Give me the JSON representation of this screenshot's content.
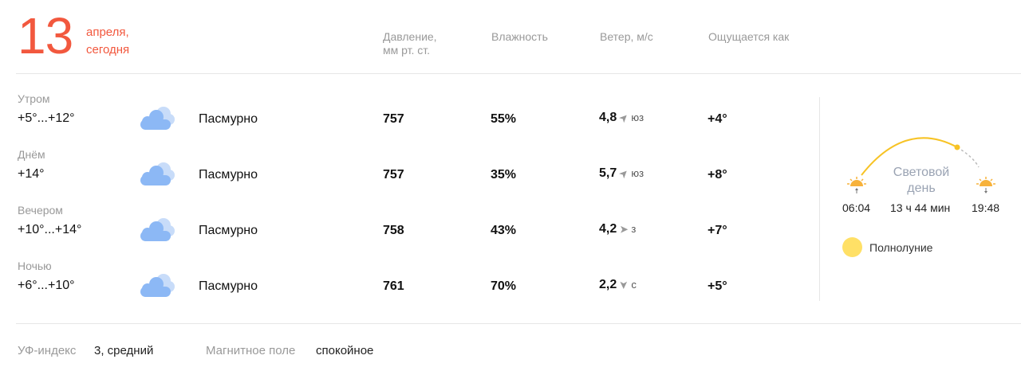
{
  "date": {
    "day": "13",
    "month": "апреля,",
    "relative": "сегодня"
  },
  "headers": {
    "pressure": "Давление,\nмм рт. ст.",
    "humidity": "Влажность",
    "wind": "Ветер, м/с",
    "feels": "Ощущается как"
  },
  "rows": [
    {
      "part": "Утром",
      "temp": "+5°...+12°",
      "icon": "overcast-cloud-icon",
      "condition": "Пасмурно",
      "pressure": "757",
      "humidity": "55%",
      "wind_speed": "4,8",
      "wind_dir": "юз",
      "wind_arrow_deg": -45,
      "feels": "+4°"
    },
    {
      "part": "Днём",
      "temp": "+14°",
      "icon": "overcast-cloud-icon",
      "condition": "Пасмурно",
      "pressure": "757",
      "humidity": "35%",
      "wind_speed": "5,7",
      "wind_dir": "юз",
      "wind_arrow_deg": -45,
      "feels": "+8°"
    },
    {
      "part": "Вечером",
      "temp": "+10°...+14°",
      "icon": "overcast-cloud-icon",
      "condition": "Пасмурно",
      "pressure": "758",
      "humidity": "43%",
      "wind_speed": "4,2",
      "wind_dir": "з",
      "wind_arrow_deg": 0,
      "feels": "+7°"
    },
    {
      "part": "Ночью",
      "temp": "+6°...+10°",
      "icon": "overcast-cloud-icon",
      "condition": "Пасмурно",
      "pressure": "761",
      "humidity": "70%",
      "wind_speed": "2,2",
      "wind_dir": "с",
      "wind_arrow_deg": 90,
      "feels": "+5°"
    }
  ],
  "sun": {
    "label1": "Световой",
    "label2": "день",
    "sunrise": "06:04",
    "duration": "13 ч 44 мин",
    "sunset": "19:48",
    "arc_color": "#f7c325"
  },
  "moon": {
    "phase": "Полнолуние",
    "color": "#ffe066"
  },
  "footer": {
    "uv_label": "УФ-индекс",
    "uv_value": "3, средний",
    "mag_label": "Магнитное поле",
    "mag_value": "спокойное"
  },
  "colors": {
    "accent": "#f2583e",
    "cloud": "#8cb8f5"
  }
}
